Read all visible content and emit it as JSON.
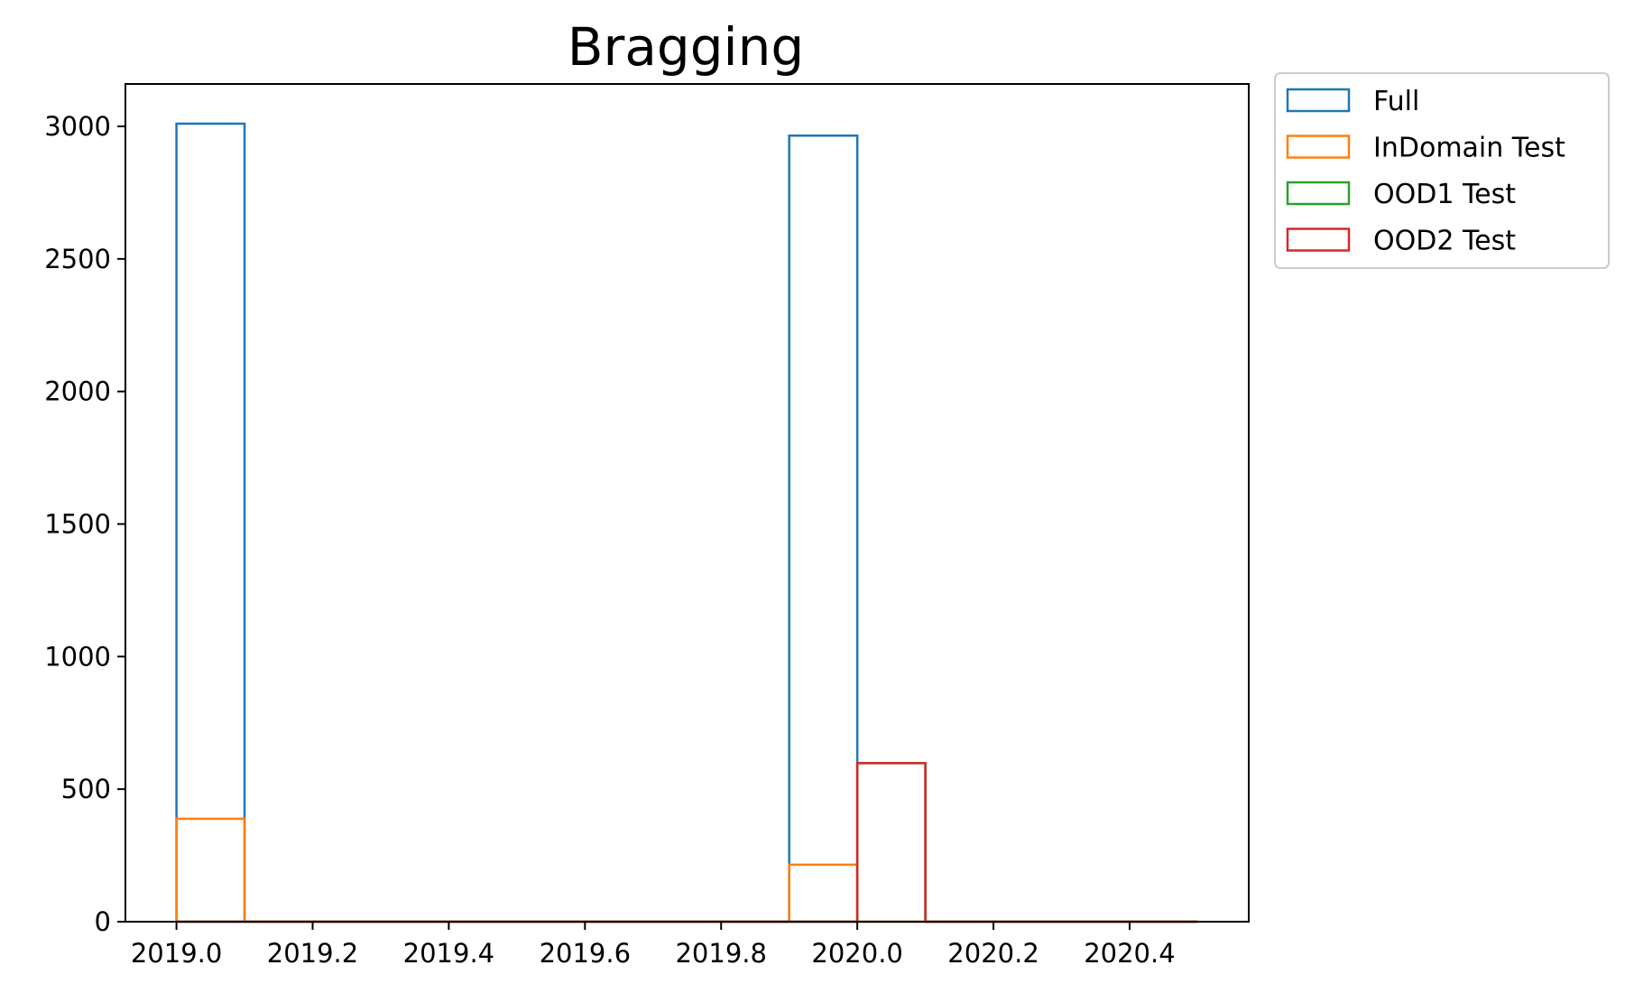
{
  "chart_data": {
    "type": "bar",
    "title": "Bragging",
    "xlabel": "",
    "ylabel": "",
    "xlim": [
      2018.925,
      2020.575
    ],
    "ylim": [
      0,
      3160
    ],
    "x_ticks": [
      "2019.0",
      "2019.2",
      "2019.4",
      "2019.6",
      "2019.8",
      "2020.0",
      "2020.2",
      "2020.4"
    ],
    "y_ticks": [
      "0",
      "500",
      "1000",
      "1500",
      "2000",
      "2500",
      "3000"
    ],
    "bin_edges": [
      2019.0,
      2019.1,
      2019.2,
      2019.3,
      2019.4,
      2019.5,
      2019.6,
      2019.7,
      2019.8,
      2019.9,
      2020.0,
      2020.1,
      2020.2,
      2020.3,
      2020.4,
      2020.5
    ],
    "histtype": "step",
    "grid": false,
    "legend_position": "outside upper-right",
    "series": [
      {
        "name": "Full",
        "color": "#1f77b4",
        "values": [
          3010,
          0,
          0,
          0,
          0,
          0,
          0,
          0,
          0,
          2965,
          0,
          0,
          0,
          0,
          0
        ]
      },
      {
        "name": "InDomain Test",
        "color": "#ff7f0e",
        "values": [
          388,
          0,
          0,
          0,
          0,
          0,
          0,
          0,
          0,
          215,
          0,
          0,
          0,
          0,
          0
        ]
      },
      {
        "name": "OOD1 Test",
        "color": "#2ca02c",
        "values": [
          0,
          0,
          0,
          0,
          0,
          0,
          0,
          0,
          0,
          0,
          598,
          0,
          0,
          0,
          0
        ]
      },
      {
        "name": "OOD2 Test",
        "color": "#d62728",
        "values": [
          0,
          0,
          0,
          0,
          0,
          0,
          0,
          0,
          0,
          0,
          598,
          0,
          0,
          0,
          0
        ]
      }
    ]
  }
}
